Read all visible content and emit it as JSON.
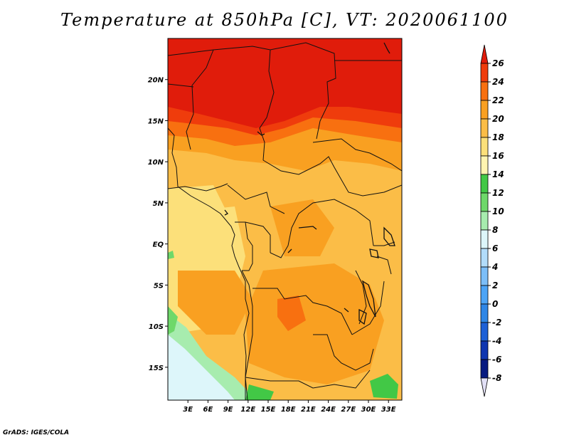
{
  "title": "Temperature at 850hPa [C], VT: 2020061100",
  "credit": "GrADS: IGES/COLA",
  "map": {
    "lat_range": [
      -19,
      25
    ],
    "lon_range": [
      0,
      35
    ],
    "lat_labels": [
      "20N",
      "15N",
      "10N",
      "5N",
      "EQ",
      "5S",
      "10S",
      "15S"
    ],
    "lon_labels": [
      "3E",
      "6E",
      "9E",
      "12E",
      "15E",
      "18E",
      "21E",
      "24E",
      "27E",
      "30E",
      "33E"
    ]
  },
  "colorbar": {
    "levels": [
      "26",
      "24",
      "22",
      "20",
      "18",
      "16",
      "14",
      "12",
      "10",
      "8",
      "6",
      "4",
      "2",
      "0",
      "-2",
      "-4",
      "-6",
      "-8"
    ],
    "colors": [
      "#e01c0b",
      "#ef3c0c",
      "#f87010",
      "#f9a021",
      "#fbbd47",
      "#fce07a",
      "#fff4b0",
      "#42c846",
      "#6ed86a",
      "#a7ecae",
      "#ddf6fa",
      "#b2dcfa",
      "#7cbef8",
      "#4ca4f6",
      "#2e86e6",
      "#1d60d6",
      "#0f36b0",
      "#071a80",
      "#e2e0f6"
    ]
  }
}
